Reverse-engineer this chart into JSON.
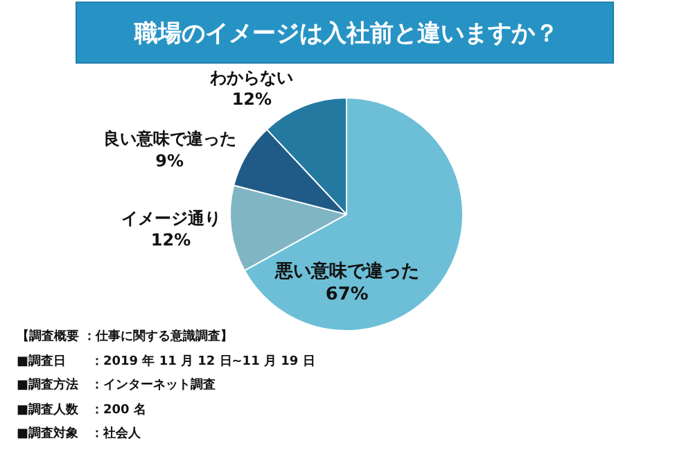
{
  "chart_data": {
    "type": "pie",
    "title": "職場のイメージは入社前と違いますか？",
    "categories": [
      "悪い意味で違った",
      "イメージ通り",
      "良い意味で違った",
      "わからない"
    ],
    "values": [
      67,
      12,
      9,
      12
    ],
    "value_labels": [
      "67%",
      "12%",
      "9%",
      "12%"
    ],
    "colors": [
      "#6cbfd6",
      "#80b5c4",
      "#1f5b86",
      "#2379a0"
    ],
    "legend": false,
    "annotations": [
      "【調査概要 ：仕事に関する意識調査】",
      "■調査日　　：2019 年 11 月 12 日~11 月 19 日",
      "■調査方法　：インターネット調査",
      "■調査人数　：200 名",
      "■調査対象　：社会人"
    ]
  }
}
